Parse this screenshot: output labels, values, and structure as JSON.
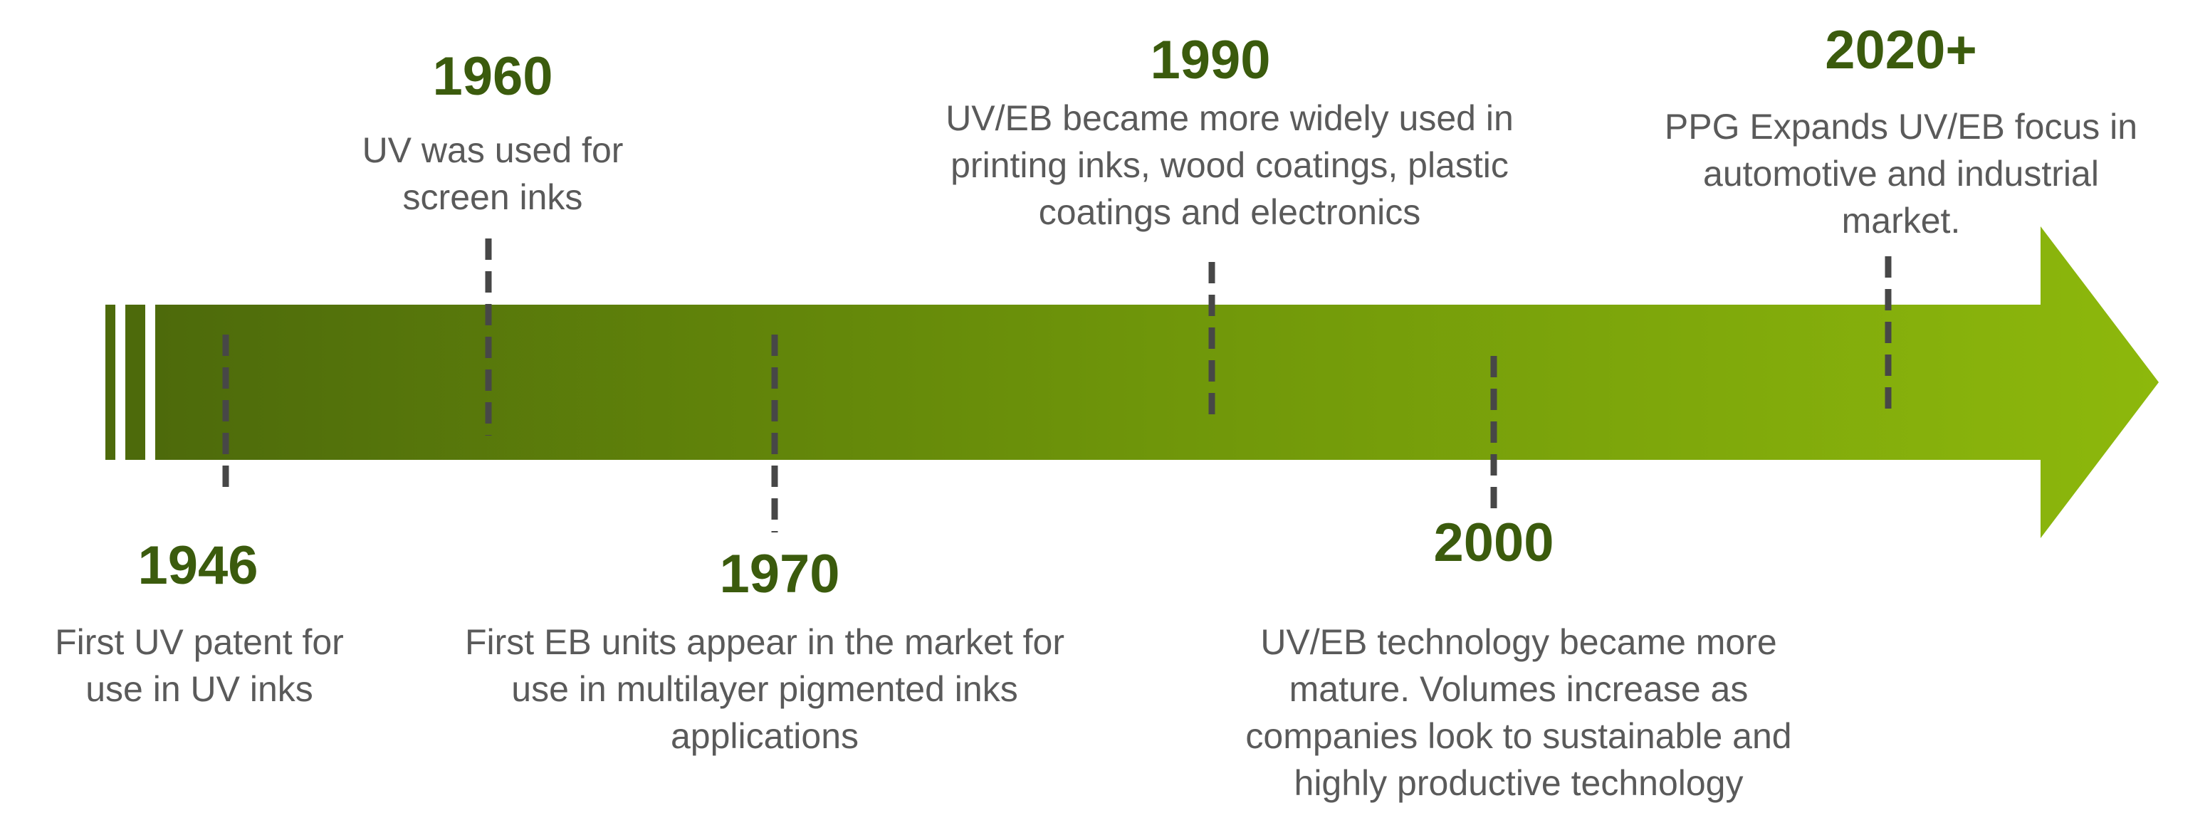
{
  "events": [
    {
      "year": "1946",
      "lines": [
        "First UV patent for",
        "use in UV inks"
      ]
    },
    {
      "year": "1960",
      "lines": [
        "UV was used for",
        "screen inks"
      ]
    },
    {
      "year": "1970",
      "lines": [
        "First EB units appear in the market for",
        "use in multilayer pigmented inks",
        "applications"
      ]
    },
    {
      "year": "1990",
      "lines": [
        "UV/EB became more widely used in",
        "printing inks, wood coatings, plastic",
        "coatings and electronics"
      ]
    },
    {
      "year": "2000",
      "lines": [
        "UV/EB technology became more",
        "mature. Volumes increase as",
        "companies look to sustainable and",
        "highly productive technology"
      ]
    },
    {
      "year": "2020+",
      "lines": [
        "PPG Expands UV/EB focus in",
        "automotive and industrial",
        "market."
      ]
    }
  ]
}
